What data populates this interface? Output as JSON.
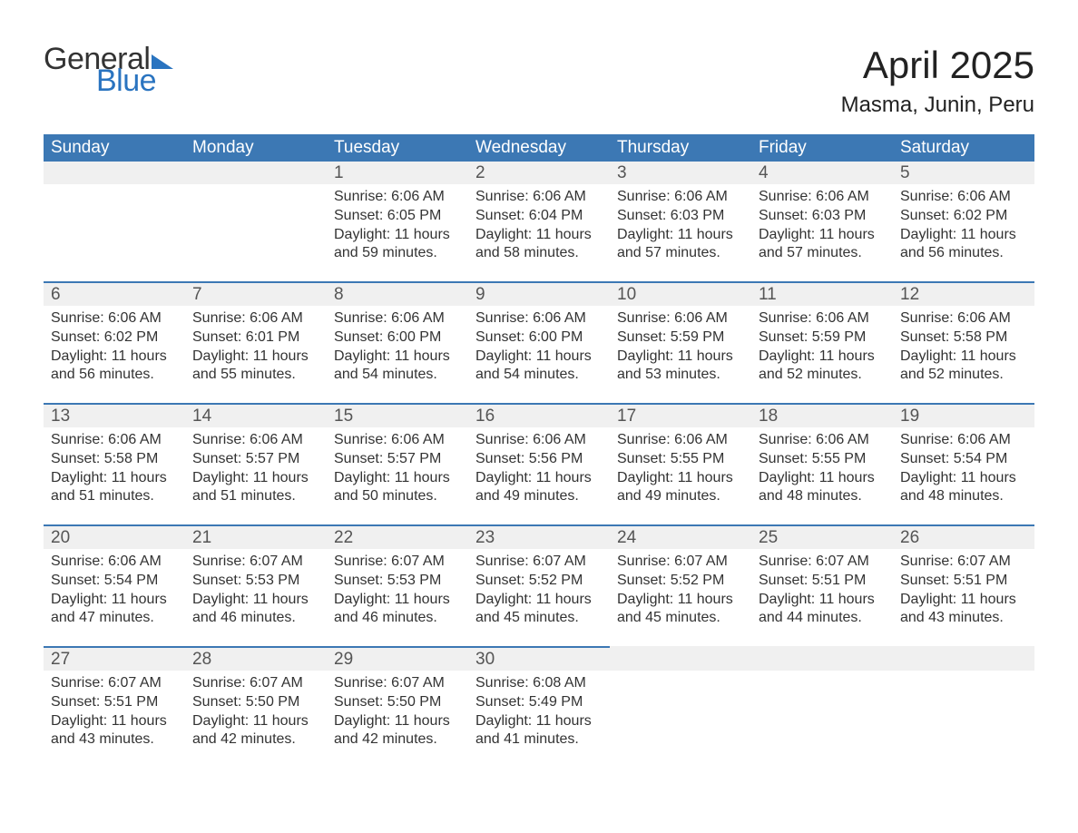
{
  "logo": {
    "word1": "General",
    "word2": "Blue"
  },
  "header": {
    "month_title": "April 2025",
    "location": "Masma, Junin, Peru"
  },
  "colors": {
    "header_blue": "#3c78b4",
    "accent_blue": "#2a74c0",
    "day_bg": "#f0f0f0",
    "text": "#333333",
    "background": "#ffffff"
  },
  "day_labels": [
    "Sunday",
    "Monday",
    "Tuesday",
    "Wednesday",
    "Thursday",
    "Friday",
    "Saturday"
  ],
  "labels": {
    "sunrise_prefix": "Sunrise: ",
    "sunset_prefix": "Sunset: ",
    "daylight_prefix": "Daylight: "
  },
  "weeks": [
    [
      null,
      null,
      {
        "day": "1",
        "sunrise": "6:06 AM",
        "sunset": "6:05 PM",
        "daylight": "11 hours and 59 minutes."
      },
      {
        "day": "2",
        "sunrise": "6:06 AM",
        "sunset": "6:04 PM",
        "daylight": "11 hours and 58 minutes."
      },
      {
        "day": "3",
        "sunrise": "6:06 AM",
        "sunset": "6:03 PM",
        "daylight": "11 hours and 57 minutes."
      },
      {
        "day": "4",
        "sunrise": "6:06 AM",
        "sunset": "6:03 PM",
        "daylight": "11 hours and 57 minutes."
      },
      {
        "day": "5",
        "sunrise": "6:06 AM",
        "sunset": "6:02 PM",
        "daylight": "11 hours and 56 minutes."
      }
    ],
    [
      {
        "day": "6",
        "sunrise": "6:06 AM",
        "sunset": "6:02 PM",
        "daylight": "11 hours and 56 minutes."
      },
      {
        "day": "7",
        "sunrise": "6:06 AM",
        "sunset": "6:01 PM",
        "daylight": "11 hours and 55 minutes."
      },
      {
        "day": "8",
        "sunrise": "6:06 AM",
        "sunset": "6:00 PM",
        "daylight": "11 hours and 54 minutes."
      },
      {
        "day": "9",
        "sunrise": "6:06 AM",
        "sunset": "6:00 PM",
        "daylight": "11 hours and 54 minutes."
      },
      {
        "day": "10",
        "sunrise": "6:06 AM",
        "sunset": "5:59 PM",
        "daylight": "11 hours and 53 minutes."
      },
      {
        "day": "11",
        "sunrise": "6:06 AM",
        "sunset": "5:59 PM",
        "daylight": "11 hours and 52 minutes."
      },
      {
        "day": "12",
        "sunrise": "6:06 AM",
        "sunset": "5:58 PM",
        "daylight": "11 hours and 52 minutes."
      }
    ],
    [
      {
        "day": "13",
        "sunrise": "6:06 AM",
        "sunset": "5:58 PM",
        "daylight": "11 hours and 51 minutes."
      },
      {
        "day": "14",
        "sunrise": "6:06 AM",
        "sunset": "5:57 PM",
        "daylight": "11 hours and 51 minutes."
      },
      {
        "day": "15",
        "sunrise": "6:06 AM",
        "sunset": "5:57 PM",
        "daylight": "11 hours and 50 minutes."
      },
      {
        "day": "16",
        "sunrise": "6:06 AM",
        "sunset": "5:56 PM",
        "daylight": "11 hours and 49 minutes."
      },
      {
        "day": "17",
        "sunrise": "6:06 AM",
        "sunset": "5:55 PM",
        "daylight": "11 hours and 49 minutes."
      },
      {
        "day": "18",
        "sunrise": "6:06 AM",
        "sunset": "5:55 PM",
        "daylight": "11 hours and 48 minutes."
      },
      {
        "day": "19",
        "sunrise": "6:06 AM",
        "sunset": "5:54 PM",
        "daylight": "11 hours and 48 minutes."
      }
    ],
    [
      {
        "day": "20",
        "sunrise": "6:06 AM",
        "sunset": "5:54 PM",
        "daylight": "11 hours and 47 minutes."
      },
      {
        "day": "21",
        "sunrise": "6:07 AM",
        "sunset": "5:53 PM",
        "daylight": "11 hours and 46 minutes."
      },
      {
        "day": "22",
        "sunrise": "6:07 AM",
        "sunset": "5:53 PM",
        "daylight": "11 hours and 46 minutes."
      },
      {
        "day": "23",
        "sunrise": "6:07 AM",
        "sunset": "5:52 PM",
        "daylight": "11 hours and 45 minutes."
      },
      {
        "day": "24",
        "sunrise": "6:07 AM",
        "sunset": "5:52 PM",
        "daylight": "11 hours and 45 minutes."
      },
      {
        "day": "25",
        "sunrise": "6:07 AM",
        "sunset": "5:51 PM",
        "daylight": "11 hours and 44 minutes."
      },
      {
        "day": "26",
        "sunrise": "6:07 AM",
        "sunset": "5:51 PM",
        "daylight": "11 hours and 43 minutes."
      }
    ],
    [
      {
        "day": "27",
        "sunrise": "6:07 AM",
        "sunset": "5:51 PM",
        "daylight": "11 hours and 43 minutes."
      },
      {
        "day": "28",
        "sunrise": "6:07 AM",
        "sunset": "5:50 PM",
        "daylight": "11 hours and 42 minutes."
      },
      {
        "day": "29",
        "sunrise": "6:07 AM",
        "sunset": "5:50 PM",
        "daylight": "11 hours and 42 minutes."
      },
      {
        "day": "30",
        "sunrise": "6:08 AM",
        "sunset": "5:49 PM",
        "daylight": "11 hours and 41 minutes."
      },
      null,
      null,
      null
    ]
  ]
}
